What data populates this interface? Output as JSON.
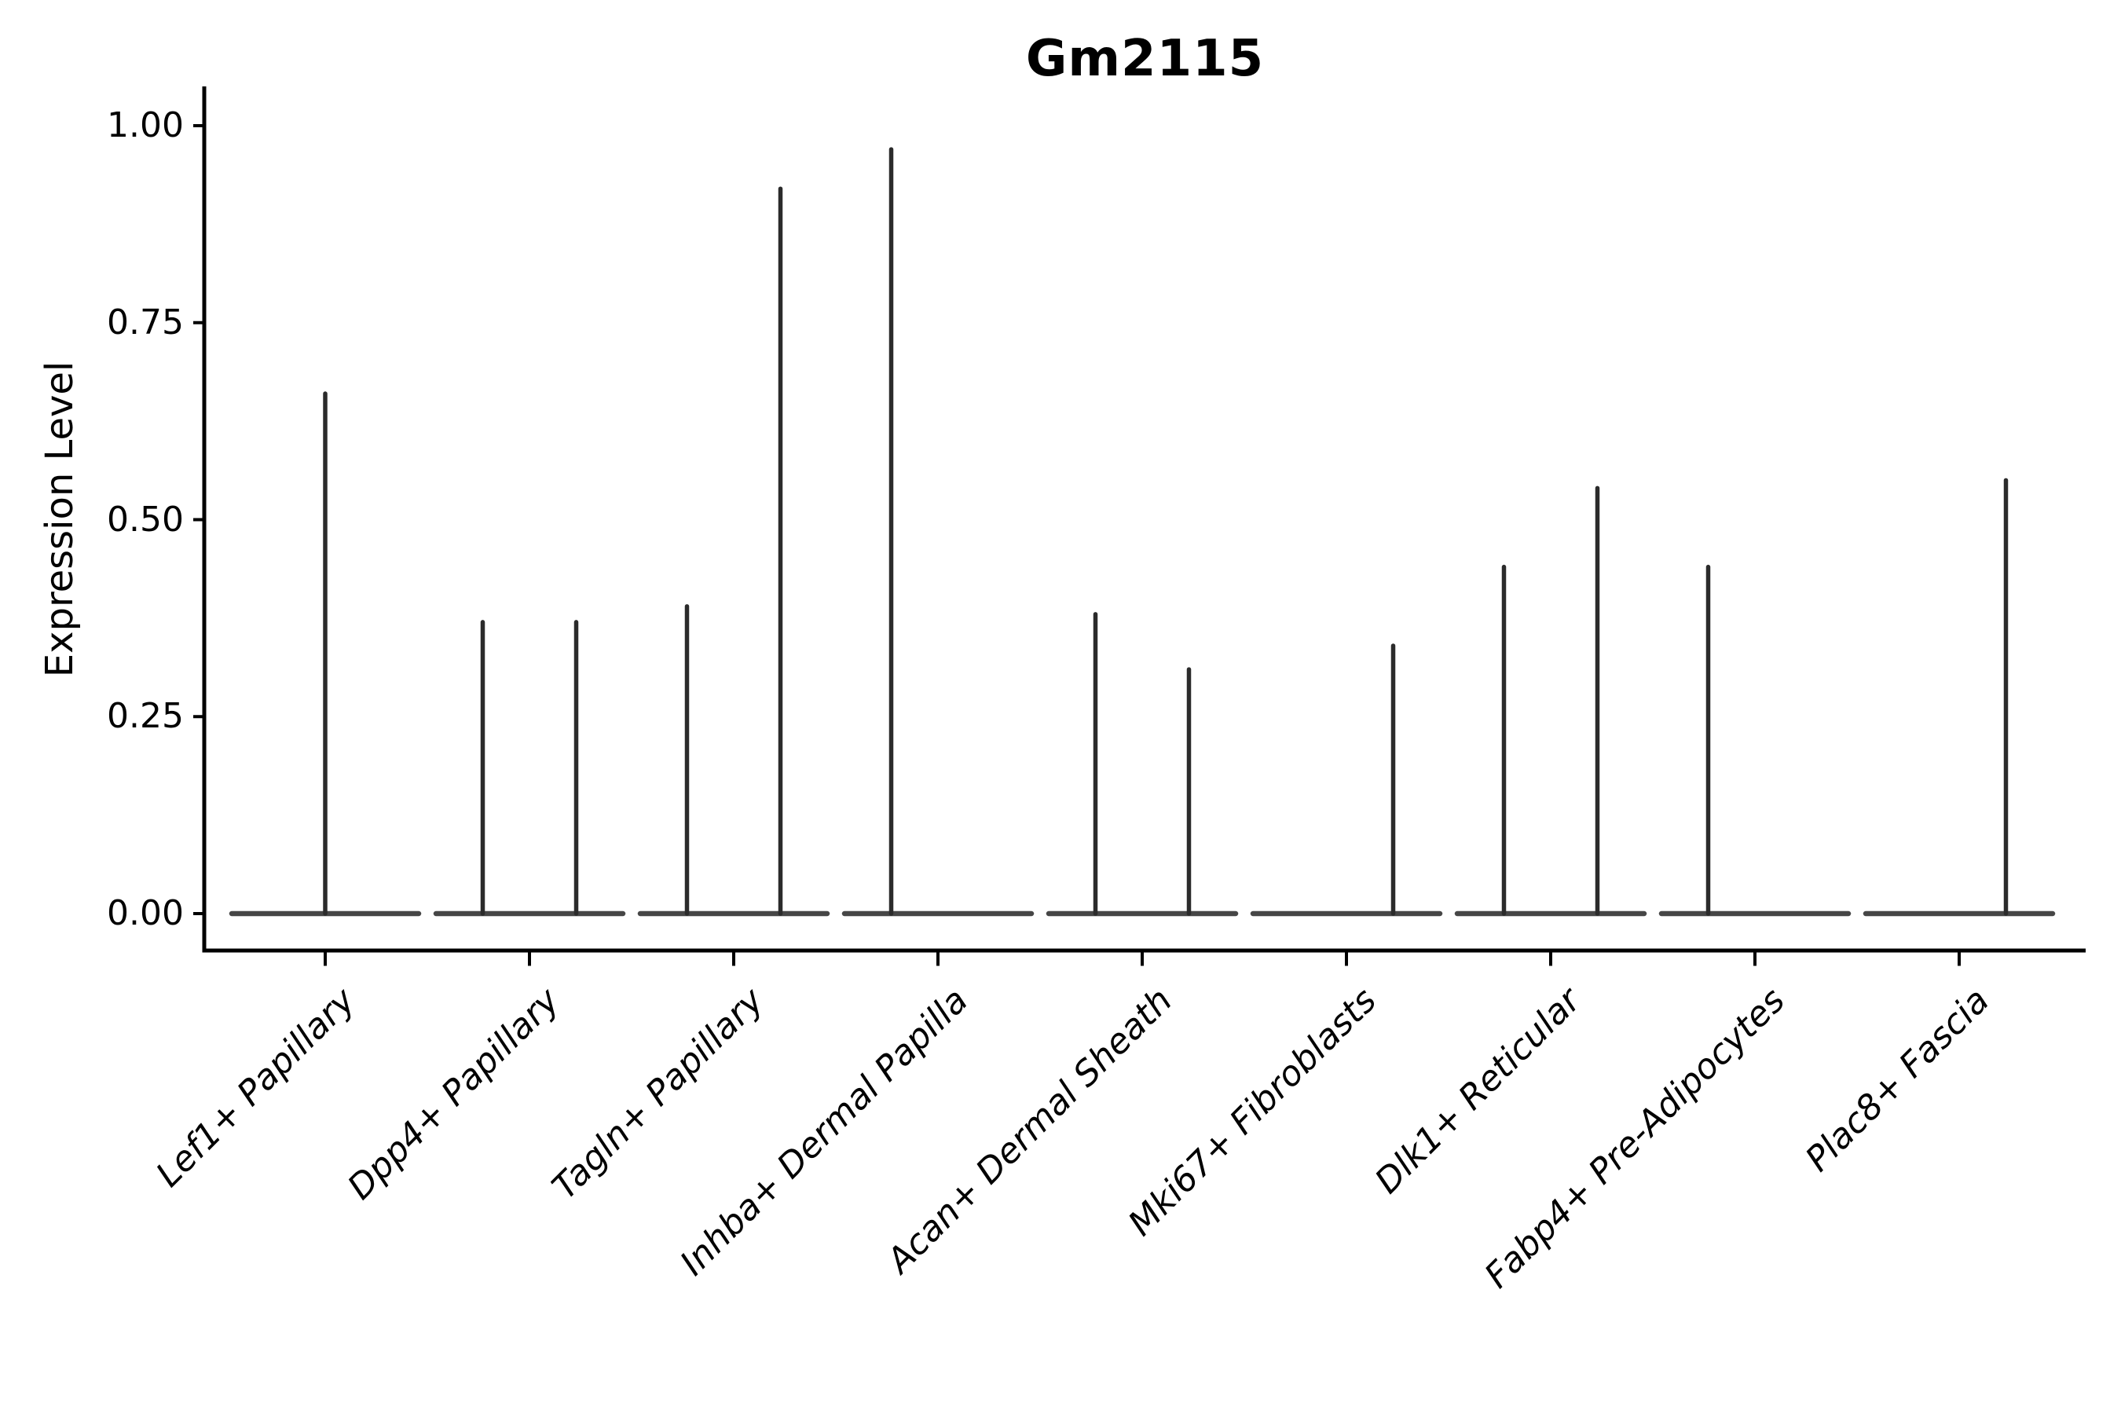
{
  "title": "Gm2115",
  "ylabel": "Expression Level",
  "chart_data": {
    "type": "violin",
    "title": "Gm2115",
    "xlabel": "",
    "ylabel": "Expression Level",
    "grid": false,
    "legend": "none",
    "background": "#ffffff",
    "ylim": [
      -0.05,
      1.04
    ],
    "yticks": [
      0,
      0.25,
      0.5,
      0.75,
      1.0
    ],
    "ytick_labels": [
      "0.00",
      "0.25",
      "0.50",
      "0.75",
      "1.00"
    ],
    "categories": [
      "Lef1+ Papillary",
      "Dpp4+ Papillary",
      "Tagln+ Papillary",
      "Inhba+ Dermal Papilla",
      "Acan+ Dermal Sheath",
      "Mki67+ Fibroblasts",
      "Dlk1+ Reticular",
      "Fabp4+ Pre-Adipocytes",
      "Plac8+ Fascia"
    ],
    "description": "Each cell type shows a violin collapsed to a flat line at expression 0 with hair-thin density spikes rising to the maximum expression value; spikes sit at the center, left-quarter or right-quarter of each category slot.",
    "series": [
      {
        "category": "Lef1+ Papillary",
        "spikes": [
          {
            "pos": "center",
            "max": 0.66
          }
        ]
      },
      {
        "category": "Dpp4+ Papillary",
        "spikes": [
          {
            "pos": "left",
            "max": 0.37
          },
          {
            "pos": "right",
            "max": 0.37
          }
        ]
      },
      {
        "category": "Tagln+ Papillary",
        "spikes": [
          {
            "pos": "left",
            "max": 0.39
          },
          {
            "pos": "right",
            "max": 0.92
          }
        ]
      },
      {
        "category": "Inhba+ Dermal Papilla",
        "spikes": [
          {
            "pos": "left",
            "max": 0.97
          }
        ]
      },
      {
        "category": "Acan+ Dermal Sheath",
        "spikes": [
          {
            "pos": "left",
            "max": 0.38
          },
          {
            "pos": "right",
            "max": 0.31
          }
        ]
      },
      {
        "category": "Mki67+ Fibroblasts",
        "spikes": [
          {
            "pos": "right",
            "max": 0.34
          }
        ]
      },
      {
        "category": "Dlk1+ Reticular",
        "spikes": [
          {
            "pos": "left",
            "max": 0.44
          },
          {
            "pos": "right",
            "max": 0.54
          }
        ]
      },
      {
        "category": "Fabp4+ Pre-Adipocytes",
        "spikes": [
          {
            "pos": "left",
            "max": 0.44
          }
        ]
      },
      {
        "category": "Plac8+ Fascia",
        "spikes": [
          {
            "pos": "right",
            "max": 0.55
          }
        ]
      }
    ],
    "baseline_value": 0,
    "style": {
      "axis_color": "#000000",
      "spike_color": "#2b2b2b",
      "baseline_color": "#464646",
      "text_color": "#000000"
    }
  }
}
